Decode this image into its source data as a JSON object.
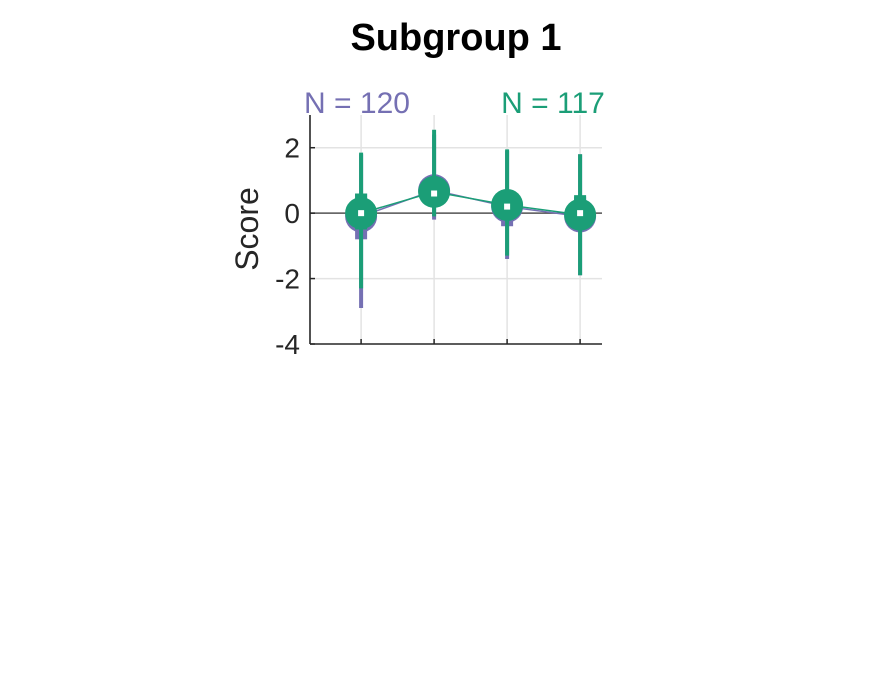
{
  "chart_data": {
    "type": "scatter",
    "title": "Subgroup 1",
    "ylabel": "Score",
    "xlabel": "",
    "ylim": [
      -4,
      3
    ],
    "yticks": [
      -4,
      -2,
      0,
      2
    ],
    "xlim": [
      0.3,
      4.3
    ],
    "x": [
      1,
      2,
      3,
      4
    ],
    "grid": true,
    "zero_line": true,
    "series": [
      {
        "count_label": "N = 120",
        "color": "#7570b3",
        "mean": [
          -0.1,
          0.7,
          0.2,
          -0.1
        ],
        "iqr": [
          [
            -0.8,
            0.6
          ],
          [
            0.3,
            1.0
          ],
          [
            -0.4,
            0.65
          ],
          [
            -0.5,
            0.5
          ]
        ],
        "range": [
          [
            -2.9,
            1.8
          ],
          [
            -0.2,
            2.4
          ],
          [
            -1.4,
            1.9
          ],
          [
            -1.9,
            1.8
          ]
        ],
        "median": [
          0.0,
          0.6,
          0.2,
          0.0
        ]
      },
      {
        "count_label": "N = 117",
        "color": "#1b9e77",
        "mean": [
          0.0,
          0.65,
          0.25,
          -0.05
        ],
        "iqr": [
          [
            -0.5,
            0.6
          ],
          [
            0.2,
            1.0
          ],
          [
            -0.2,
            0.65
          ],
          [
            -0.4,
            0.55
          ]
        ],
        "range": [
          [
            -2.3,
            1.85
          ],
          [
            -0.1,
            2.55
          ],
          [
            -1.3,
            1.95
          ],
          [
            -1.9,
            1.8
          ]
        ],
        "median": [
          0.0,
          0.6,
          0.2,
          0.0
        ]
      }
    ]
  }
}
